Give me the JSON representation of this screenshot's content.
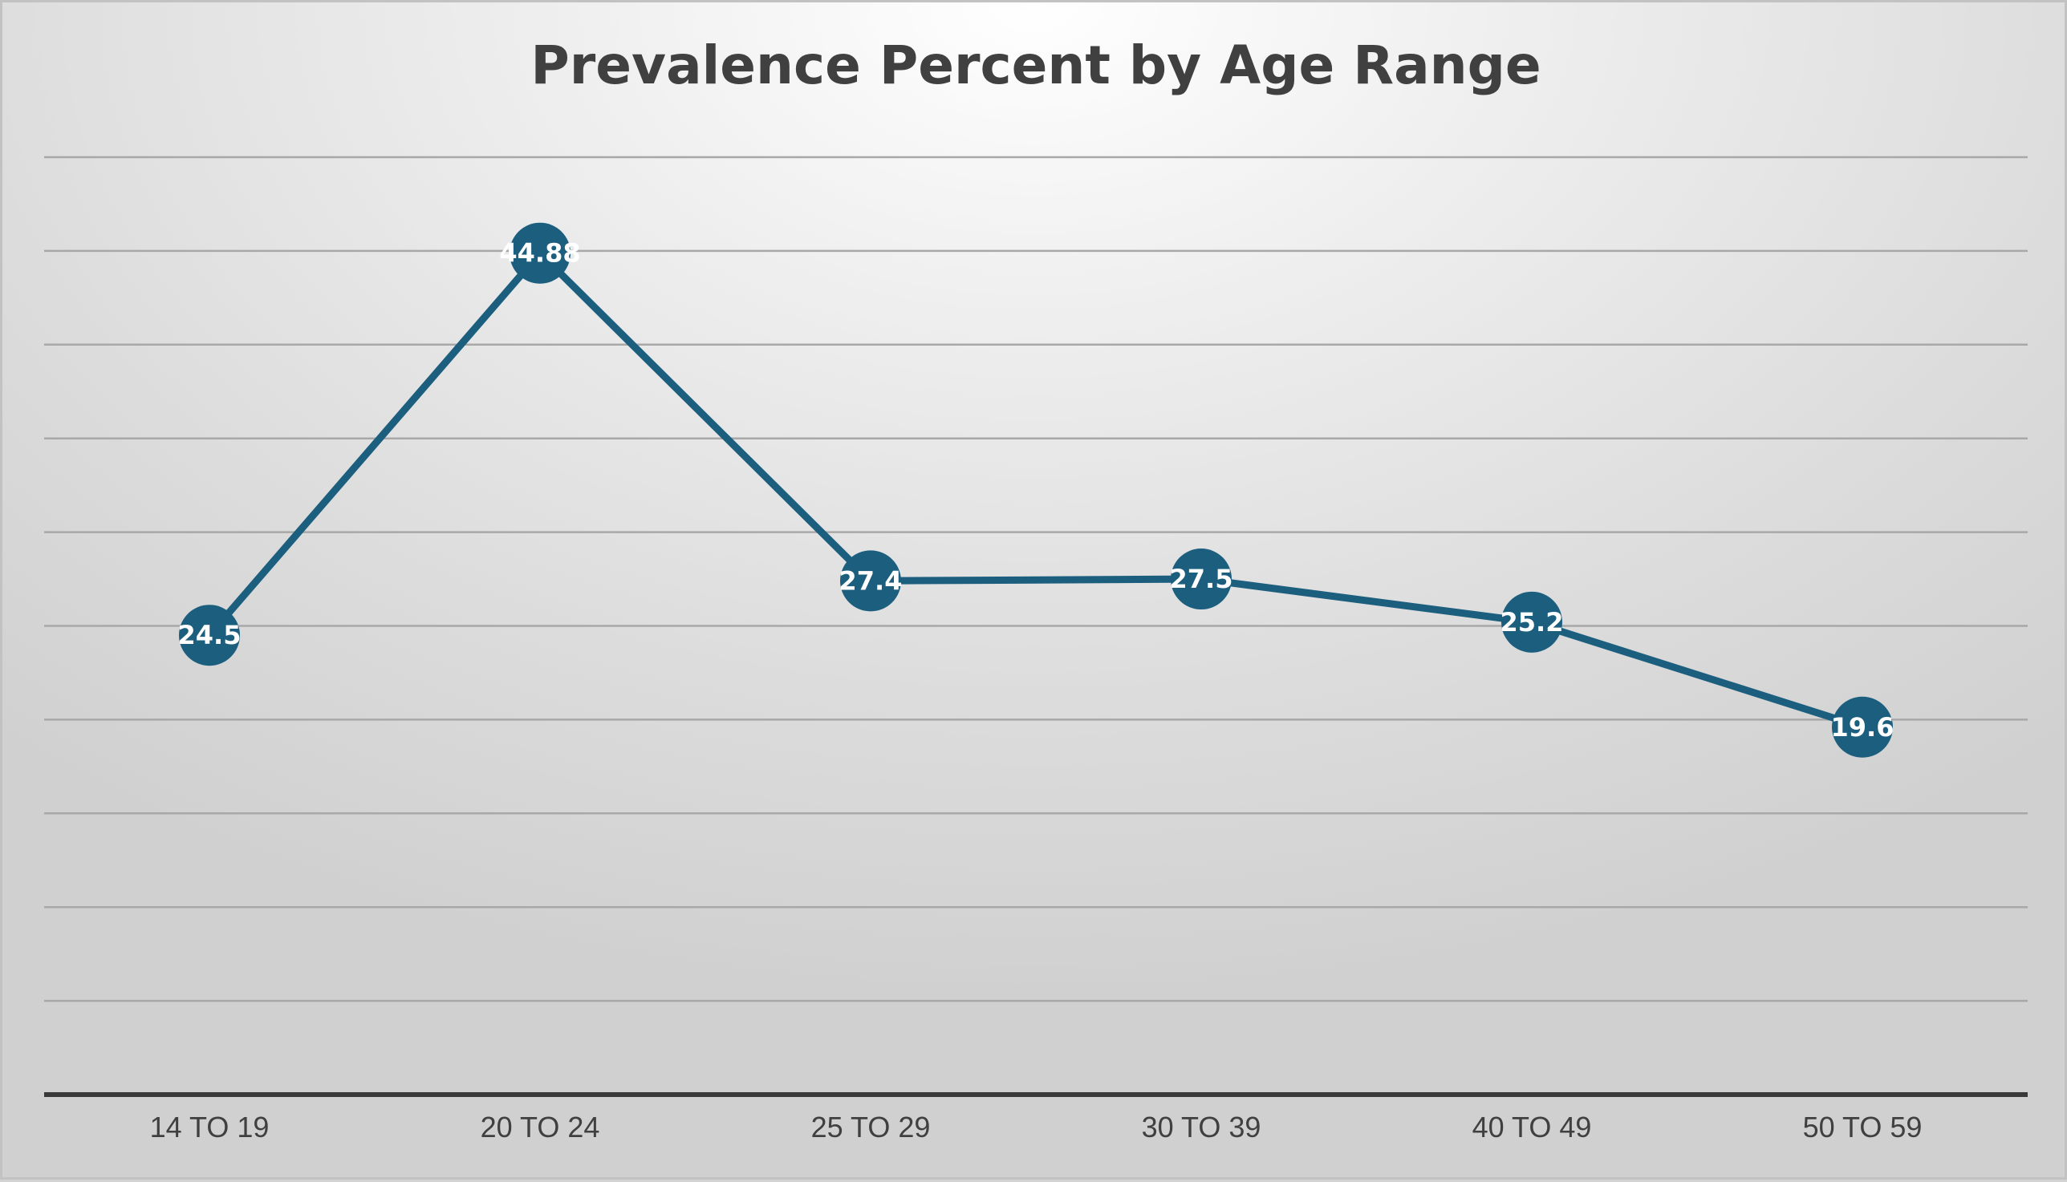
{
  "chart_data": {
    "type": "line",
    "title": "Prevalence Percent by Age Range",
    "xlabel": "",
    "ylabel": "",
    "categories": [
      "14 TO 19",
      "20 TO 24",
      "25 TO 29",
      "30 TO 39",
      "40 TO 49",
      "50 TO 59"
    ],
    "series": [
      {
        "values": [
          24.5,
          44.88,
          27.4,
          27.5,
          25.2,
          19.6
        ],
        "labels": [
          "24.5",
          "44.88",
          "27.4",
          "27.5",
          "25.2",
          "19.6"
        ],
        "color": "#1b5e7e"
      }
    ],
    "ylim": [
      0,
      50
    ],
    "y_gridline_step": 5,
    "y_tick_labels_shown": false,
    "grid": true,
    "legend": "none",
    "data_labels": "inside-markers",
    "colors": {
      "line": "#1b5e7e",
      "gridline": "#a8a8a8",
      "axis": "#3a3a3a",
      "title": "#404040",
      "label": "#404040"
    }
  }
}
